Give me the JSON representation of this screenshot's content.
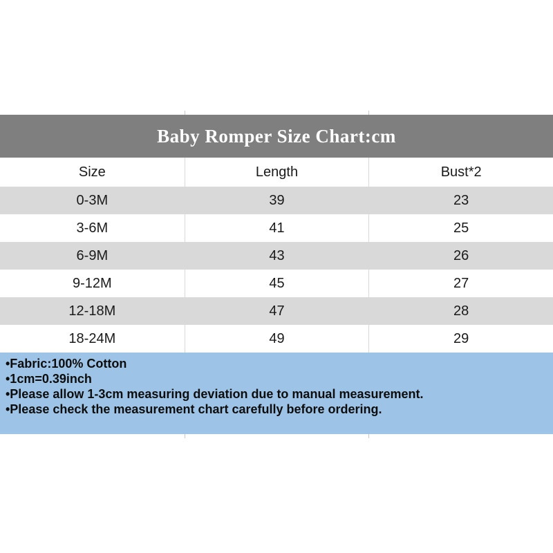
{
  "chart_data": {
    "type": "table",
    "title": "Baby Romper Size Chart:cm",
    "columns": [
      "Size",
      "Length",
      "Bust*2"
    ],
    "rows": [
      [
        "0-3M",
        39,
        23
      ],
      [
        "3-6M",
        41,
        25
      ],
      [
        "6-9M",
        43,
        26
      ],
      [
        "9-12M",
        45,
        27
      ],
      [
        "12-18M",
        47,
        28
      ],
      [
        "18-24M",
        49,
        29
      ]
    ],
    "notes": [
      "•Fabric:100% Cotton",
      "•1cm=0.39inch",
      "•Please allow 1-3cm measuring deviation due to manual measurement.",
      "•Please check the measurement chart carefully before ordering."
    ],
    "layout_hints": {
      "row_striping": "first data row shaded, alternating",
      "legend_position": "none",
      "grid": "vertical column dividers visible on white rows only"
    }
  },
  "colors": {
    "title_band_bg": "#7f7f7f",
    "title_text": "#ffffff",
    "row_shade": "#d9d9d9",
    "divider": "#d9d9d9",
    "notes_bg": "#9dc3e6",
    "body_text": "#1a1a1a"
  }
}
